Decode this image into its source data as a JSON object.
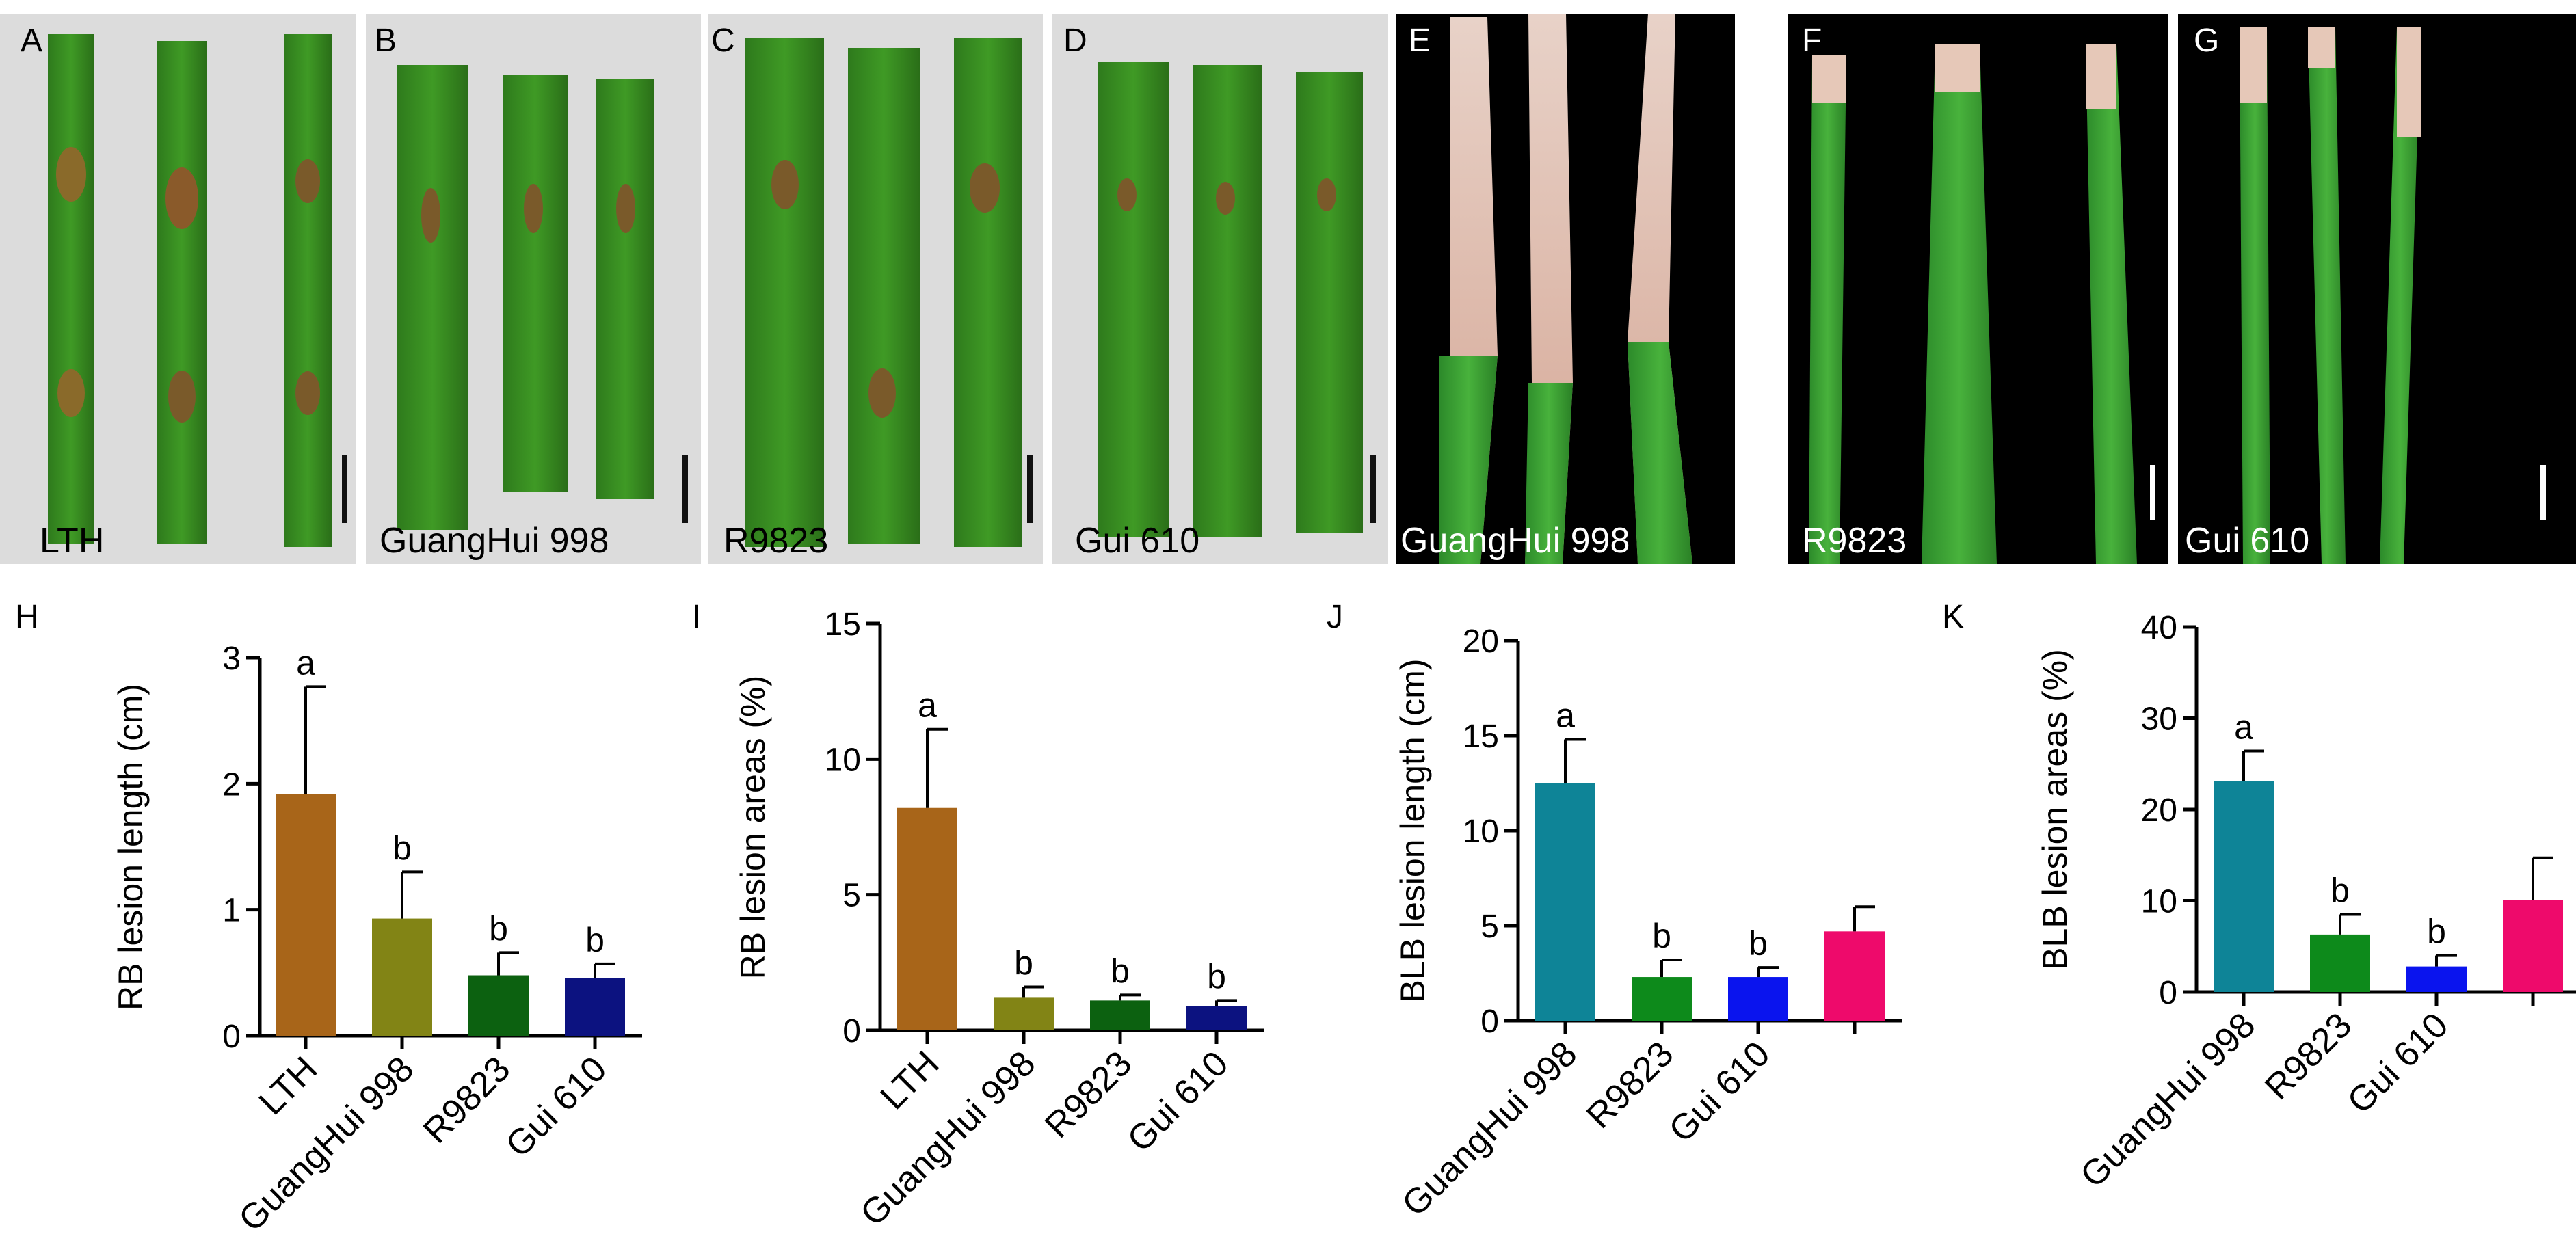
{
  "photo_panels": [
    {
      "letter": "A",
      "label": "LTH",
      "background": "light"
    },
    {
      "letter": "B",
      "label": "GuangHui 998",
      "background": "light"
    },
    {
      "letter": "C",
      "label": "R9823",
      "background": "light"
    },
    {
      "letter": "D",
      "label": "Gui 610",
      "background": "light"
    },
    {
      "letter": "E",
      "label": "GuangHui 998",
      "background": "dark"
    },
    {
      "letter": "F",
      "label": "R9823",
      "background": "dark"
    },
    {
      "letter": "G",
      "label": "Gui 610",
      "background": "dark"
    }
  ],
  "colors": {
    "LTH": "#a86519",
    "GuangHui 998 (RB)": "#828415",
    "R9823 (RB)": "#0c6110",
    "Gui 610 (RB)": "#0c1280",
    "GuangHui 998 (BLB)": "#0e8497",
    "R9823 (BLB)": "#0d8a1b",
    "Gui 610 (BLB)": "#0a14ee",
    "fourth BLB bar": "#ee0a6b"
  },
  "chart_data": [
    {
      "panel": "H",
      "type": "bar",
      "ylabel": "RB lesion length (cm)",
      "ylim": [
        0,
        3
      ],
      "yticks": [
        0,
        1,
        2,
        3
      ],
      "categories": [
        "LTH",
        "GuangHui 998",
        "R9823",
        "Gui 610"
      ],
      "values": [
        1.92,
        0.93,
        0.48,
        0.46
      ],
      "errors": [
        0.85,
        0.37,
        0.18,
        0.11
      ],
      "letters": [
        "a",
        "b",
        "b",
        "b"
      ],
      "bar_colors": [
        "#a86519",
        "#828415",
        "#0c6110",
        "#0c1280"
      ]
    },
    {
      "panel": "I",
      "type": "bar",
      "ylabel": "RB lesion areas (%)",
      "ylim": [
        0,
        15
      ],
      "yticks": [
        0,
        5,
        10,
        15
      ],
      "categories": [
        "LTH",
        "GuangHui 998",
        "R9823",
        "Gui 610"
      ],
      "values": [
        8.2,
        1.2,
        1.1,
        0.9
      ],
      "errors": [
        2.9,
        0.4,
        0.2,
        0.2
      ],
      "letters": [
        "a",
        "b",
        "b",
        "b"
      ],
      "bar_colors": [
        "#a86519",
        "#828415",
        "#0c6110",
        "#0c1280"
      ]
    },
    {
      "panel": "J",
      "type": "bar",
      "ylabel": "BLB lesion length (cm)",
      "ylim": [
        0,
        20
      ],
      "yticks": [
        0,
        5,
        10,
        15,
        20
      ],
      "categories": [
        "GuangHui 998",
        "R9823",
        "Gui 610",
        ""
      ],
      "values": [
        12.5,
        2.3,
        2.3,
        4.7
      ],
      "errors": [
        2.3,
        0.9,
        0.5,
        1.3
      ],
      "letters": [
        "a",
        "b",
        "b",
        ""
      ],
      "bar_colors": [
        "#0e8497",
        "#0d8a1b",
        "#0a14ee",
        "#ee0a6b"
      ]
    },
    {
      "panel": "K",
      "type": "bar",
      "ylabel": "BLB lesion areas (%)",
      "ylim": [
        0,
        40
      ],
      "yticks": [
        0,
        10,
        20,
        30,
        40
      ],
      "categories": [
        "GuangHui 998",
        "R9823",
        "Gui 610",
        ""
      ],
      "values": [
        23.1,
        6.3,
        2.8,
        10.1
      ],
      "errors": [
        3.3,
        2.2,
        1.2,
        4.6
      ],
      "letters": [
        "a",
        "b",
        "b",
        ""
      ],
      "bar_colors": [
        "#0e8497",
        "#0d8a1b",
        "#0a14ee",
        "#ee0a6b"
      ]
    }
  ]
}
